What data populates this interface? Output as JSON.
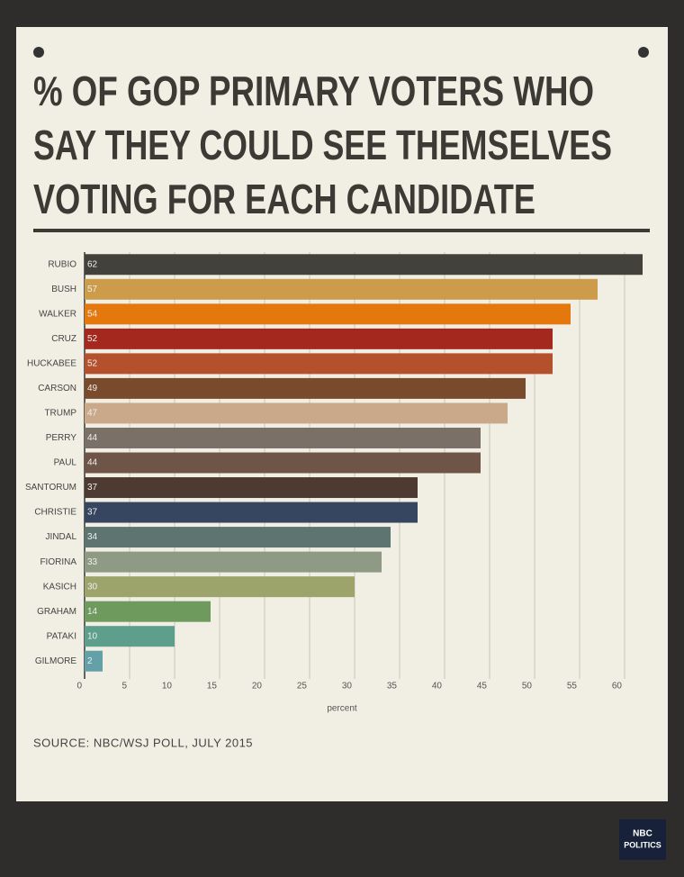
{
  "chart_data": {
    "type": "bar",
    "orientation": "horizontal",
    "title": [
      "% OF GOP PRIMARY VOTERS WHO",
      "SAY THEY COULD SEE THEMSELVES",
      "VOTING FOR EACH CANDIDATE"
    ],
    "categories": [
      "RUBIO",
      "BUSH",
      "WALKER",
      "CRUZ",
      "HUCKABEE",
      "CARSON",
      "TRUMP",
      "PERRY",
      "PAUL",
      "SANTORUM",
      "CHRISTIE",
      "JINDAL",
      "FIORINA",
      "KASICH",
      "GRAHAM",
      "PATAKI",
      "GILMORE"
    ],
    "values": [
      62,
      57,
      54,
      52,
      52,
      49,
      47,
      44,
      44,
      37,
      37,
      34,
      33,
      30,
      14,
      10,
      2
    ],
    "colors": [
      "#43413b",
      "#cc9c4a",
      "#e4780c",
      "#a5281f",
      "#b5502c",
      "#7a4a2c",
      "#c9a98a",
      "#7b7068",
      "#6e5548",
      "#4e3a30",
      "#364660",
      "#5e7470",
      "#8e9a84",
      "#9ca46c",
      "#6e9a5e",
      "#5e9e8c",
      "#64a0a8"
    ],
    "xlim": [
      0,
      62
    ],
    "xticks": [
      0,
      5,
      10,
      15,
      20,
      25,
      30,
      35,
      40,
      45,
      50,
      55,
      60
    ],
    "grid": true,
    "xlabel": "percent",
    "source": "SOURCE: NBC/WSJ POLL, JULY 2015"
  },
  "logo": {
    "line1": "NBC",
    "line2": "POLITICS"
  }
}
